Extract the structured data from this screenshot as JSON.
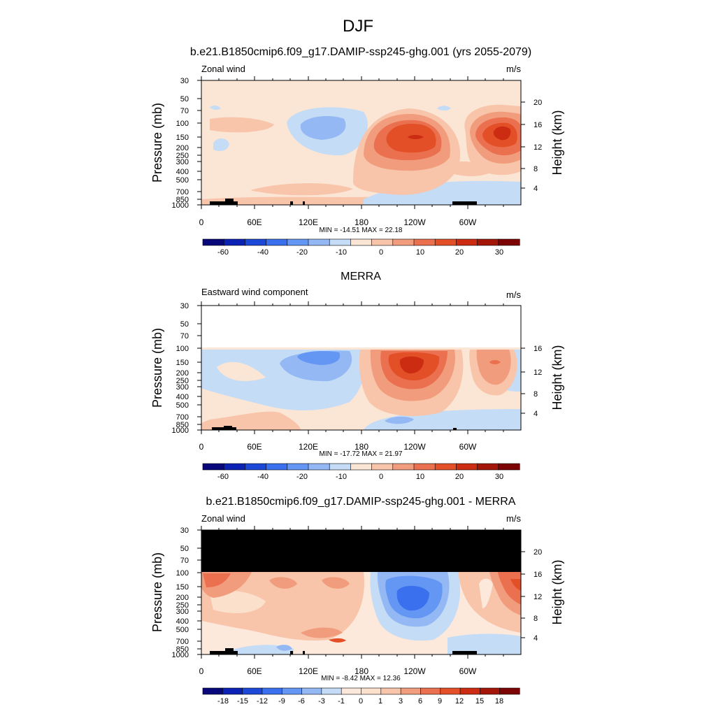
{
  "main_title": "DJF",
  "colors": {
    "palette_wind": [
      "#08087a",
      "#0c22b4",
      "#1c48d8",
      "#3a70ee",
      "#6496f4",
      "#94b8f4",
      "#c4dcf6",
      "#fbe6d6",
      "#f8c4aa",
      "#f19d7d",
      "#eb7050",
      "#e35028",
      "#cc2c12",
      "#a31608",
      "#7d0404"
    ],
    "palette_diff": [
      "#08087a",
      "#0c22b4",
      "#1c48d8",
      "#3a70ee",
      "#6496f4",
      "#94b8f4",
      "#c4dcf6",
      "#fde9dc",
      "#fbe0cc",
      "#f8c4aa",
      "#f19d7d",
      "#eb7050",
      "#e35028",
      "#cc2c12",
      "#a31608",
      "#7d0404"
    ]
  },
  "chart_data": [
    {
      "type": "heatmap",
      "title": "b.e21.B1850cmip6.f09_g17.DAMIP-ssp245-ghg.001 (yrs 2055-2079)",
      "left_label": "Zonal wind",
      "right_label": "m/s",
      "ylabel": "Pressure (mb)",
      "ylabel_right": "Height (km)",
      "x_ticks": [
        "0",
        "60E",
        "120E",
        "180",
        "120W",
        "60W"
      ],
      "y_ticks": [
        "30",
        "50",
        "70",
        "100",
        "150",
        "200",
        "250",
        "300",
        "400",
        "500",
        "700",
        "850",
        "1000"
      ],
      "y2_ticks": [
        "20",
        "16",
        "12",
        "8",
        "4"
      ],
      "stats": "MIN = -14.51  MAX =  22.18",
      "colorbar": {
        "labels": [
          "-60",
          "-40",
          "-20",
          "-10",
          "0",
          "10",
          "20",
          "30"
        ]
      },
      "xlim": [
        0,
        360
      ],
      "ylim": [
        1000,
        30
      ],
      "yscale": "log",
      "min": -14.51,
      "max": 22.18
    },
    {
      "type": "heatmap",
      "title": "MERRA",
      "left_label": "Eastward wind component",
      "right_label": "m/s",
      "ylabel": "Pressure (mb)",
      "ylabel_right": "Height (km)",
      "x_ticks": [
        "0",
        "60E",
        "120E",
        "180",
        "120W",
        "60W"
      ],
      "y_ticks": [
        "30",
        "50",
        "70",
        "100",
        "150",
        "200",
        "250",
        "300",
        "400",
        "500",
        "700",
        "850",
        "1000"
      ],
      "y2_ticks": [
        "16",
        "12",
        "8",
        "4"
      ],
      "stats": "MIN = -17.72  MAX =  21.97",
      "colorbar": {
        "labels": [
          "-60",
          "-40",
          "-20",
          "-10",
          "0",
          "10",
          "20",
          "30"
        ]
      },
      "xlim": [
        0,
        360
      ],
      "ylim": [
        1000,
        30
      ],
      "yscale": "log",
      "data_top_pressure": 100,
      "min": -17.72,
      "max": 21.97
    },
    {
      "type": "heatmap",
      "title": "b.e21.B1850cmip6.f09_g17.DAMIP-ssp245-ghg.001 - MERRA",
      "left_label": "Zonal wind",
      "right_label": "m/s",
      "ylabel": "Pressure (mb)",
      "ylabel_right": "Height (km)",
      "x_ticks": [
        "0",
        "60E",
        "120E",
        "180",
        "120W",
        "60W"
      ],
      "y_ticks": [
        "30",
        "50",
        "70",
        "100",
        "150",
        "200",
        "250",
        "300",
        "400",
        "500",
        "700",
        "850",
        "1000"
      ],
      "y2_ticks": [
        "20",
        "16",
        "12",
        "8",
        "4"
      ],
      "stats": "MIN = -8.42  MAX =  12.36",
      "colorbar": {
        "labels": [
          "-18",
          "-15",
          "-12",
          "-9",
          "-6",
          "-3",
          "-1",
          "0",
          "1",
          "3",
          "6",
          "9",
          "12",
          "15",
          "18"
        ]
      },
      "xlim": [
        0,
        360
      ],
      "ylim": [
        1000,
        30
      ],
      "yscale": "log",
      "data_top_pressure": 100,
      "min": -8.42,
      "max": 12.36
    }
  ]
}
